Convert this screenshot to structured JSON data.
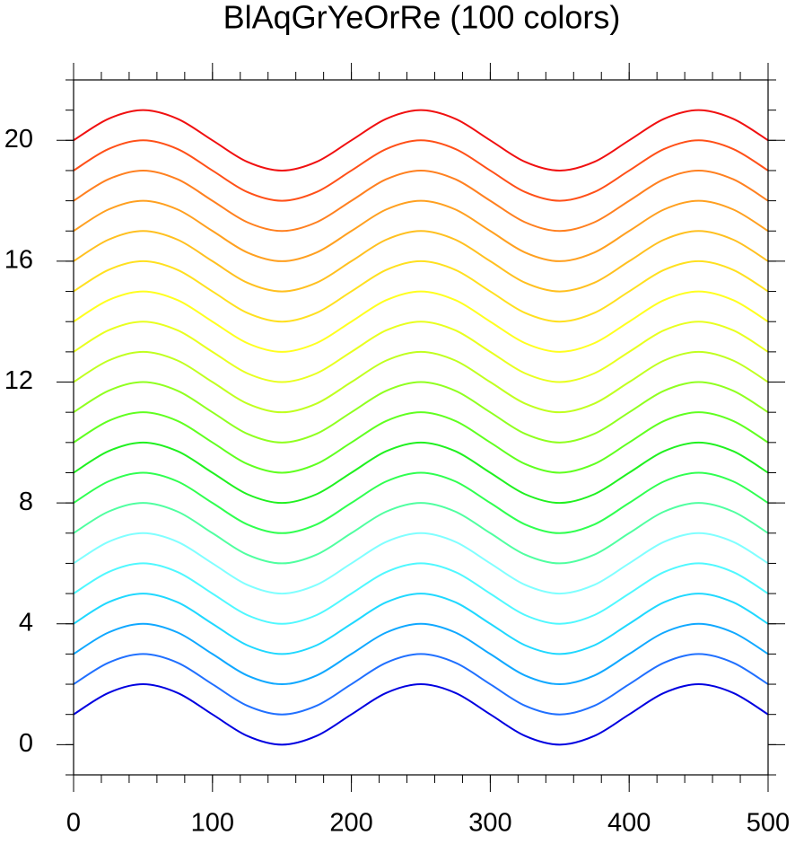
{
  "chart_data": {
    "type": "line",
    "title": "BlAqGrYeOrRe (100 colors)",
    "x": [
      0,
      25,
      50,
      75,
      100,
      125,
      150,
      175,
      200,
      225,
      250,
      275,
      300,
      325,
      350,
      375,
      400,
      425,
      450,
      475,
      500
    ],
    "series": [
      {
        "color": "#0000e0",
        "values": [
          1,
          1.71,
          2,
          1.71,
          1,
          0.29,
          0,
          0.29,
          1,
          1.71,
          2,
          1.71,
          1,
          0.29,
          0,
          0.29,
          1,
          1.71,
          2,
          1.71,
          1
        ]
      },
      {
        "color": "#2070ff",
        "values": [
          2,
          2.71,
          3,
          2.71,
          2,
          1.29,
          1,
          1.29,
          2,
          2.71,
          3,
          2.71,
          2,
          1.29,
          1,
          1.29,
          2,
          2.71,
          3,
          2.71,
          2
        ]
      },
      {
        "color": "#10a8ff",
        "values": [
          3,
          3.71,
          4,
          3.71,
          3,
          2.29,
          2,
          2.29,
          3,
          3.71,
          4,
          3.71,
          3,
          2.29,
          2,
          2.29,
          3,
          3.71,
          4,
          3.71,
          3
        ]
      },
      {
        "color": "#20d8ff",
        "values": [
          4,
          4.71,
          5,
          4.71,
          4,
          3.29,
          3,
          3.29,
          4,
          4.71,
          5,
          4.71,
          4,
          3.29,
          3,
          3.29,
          4,
          4.71,
          5,
          4.71,
          4
        ]
      },
      {
        "color": "#50f8ff",
        "values": [
          5,
          5.71,
          6,
          5.71,
          5,
          4.29,
          4,
          4.29,
          5,
          5.71,
          6,
          5.71,
          5,
          4.29,
          4,
          4.29,
          5,
          5.71,
          6,
          5.71,
          5
        ]
      },
      {
        "color": "#80ffff",
        "values": [
          6,
          6.71,
          7,
          6.71,
          6,
          5.29,
          5,
          5.29,
          6,
          6.71,
          7,
          6.71,
          6,
          5.29,
          5,
          5.29,
          6,
          6.71,
          7,
          6.71,
          6
        ]
      },
      {
        "color": "#50ffa0",
        "values": [
          7,
          7.71,
          8,
          7.71,
          7,
          6.29,
          6,
          6.29,
          7,
          7.71,
          8,
          7.71,
          7,
          6.29,
          6,
          6.29,
          7,
          7.71,
          8,
          7.71,
          7
        ]
      },
      {
        "color": "#30ff50",
        "values": [
          8,
          8.71,
          9,
          8.71,
          8,
          7.29,
          7,
          7.29,
          8,
          8.71,
          9,
          8.71,
          8,
          7.29,
          7,
          7.29,
          8,
          8.71,
          9,
          8.71,
          8
        ]
      },
      {
        "color": "#20f020",
        "values": [
          9,
          9.71,
          10,
          9.71,
          9,
          8.29,
          8,
          8.29,
          9,
          9.71,
          10,
          9.71,
          9,
          8.29,
          8,
          8.29,
          9,
          9.71,
          10,
          9.71,
          9
        ]
      },
      {
        "color": "#60ff20",
        "values": [
          10,
          10.71,
          11,
          10.71,
          10,
          9.29,
          9,
          9.29,
          10,
          10.71,
          11,
          10.71,
          10,
          9.29,
          9,
          9.29,
          10,
          10.71,
          11,
          10.71,
          10
        ]
      },
      {
        "color": "#90ff20",
        "values": [
          11,
          11.71,
          12,
          11.71,
          11,
          10.29,
          10,
          10.29,
          11,
          11.71,
          12,
          11.71,
          11,
          10.29,
          10,
          10.29,
          11,
          11.71,
          12,
          11.71,
          11
        ]
      },
      {
        "color": "#c0ff20",
        "values": [
          12,
          12.71,
          13,
          12.71,
          12,
          11.29,
          11,
          11.29,
          12,
          12.71,
          13,
          12.71,
          12,
          11.29,
          11,
          11.29,
          12,
          12.71,
          13,
          12.71,
          12
        ]
      },
      {
        "color": "#e8ff20",
        "values": [
          13,
          13.71,
          14,
          13.71,
          13,
          12.29,
          12,
          12.29,
          13,
          13.71,
          14,
          13.71,
          13,
          12.29,
          12,
          12.29,
          13,
          13.71,
          14,
          13.71,
          13
        ]
      },
      {
        "color": "#ffff20",
        "values": [
          14,
          14.71,
          15,
          14.71,
          14,
          13.29,
          13,
          13.29,
          14,
          14.71,
          15,
          14.71,
          14,
          13.29,
          13,
          13.29,
          14,
          14.71,
          15,
          14.71,
          14
        ]
      },
      {
        "color": "#ffe020",
        "values": [
          15,
          15.71,
          16,
          15.71,
          15,
          14.29,
          14,
          14.29,
          15,
          15.71,
          16,
          15.71,
          15,
          14.29,
          14,
          14.29,
          15,
          15.71,
          16,
          15.71,
          15
        ]
      },
      {
        "color": "#ffc020",
        "values": [
          16,
          16.71,
          17,
          16.71,
          16,
          15.29,
          15,
          15.29,
          16,
          16.71,
          17,
          16.71,
          16,
          15.29,
          15,
          15.29,
          16,
          16.71,
          17,
          16.71,
          16
        ]
      },
      {
        "color": "#ffa020",
        "values": [
          17,
          17.71,
          18,
          17.71,
          17,
          16.29,
          16,
          16.29,
          17,
          17.71,
          18,
          17.71,
          17,
          16.29,
          16,
          16.29,
          17,
          17.71,
          18,
          17.71,
          17
        ]
      },
      {
        "color": "#ff8020",
        "values": [
          18,
          18.71,
          19,
          18.71,
          18,
          17.29,
          17,
          17.29,
          18,
          18.71,
          19,
          18.71,
          18,
          17.29,
          17,
          17.29,
          18,
          18.71,
          19,
          18.71,
          18
        ]
      },
      {
        "color": "#ff5018",
        "values": [
          19,
          19.71,
          20,
          19.71,
          19,
          18.29,
          18,
          18.29,
          19,
          19.71,
          20,
          19.71,
          19,
          18.29,
          18,
          18.29,
          19,
          19.71,
          20,
          19.71,
          19
        ]
      },
      {
        "color": "#f01010",
        "values": [
          20,
          20.71,
          21,
          20.71,
          20,
          19.29,
          19,
          19.29,
          20,
          20.71,
          21,
          20.71,
          20,
          19.29,
          19,
          19.29,
          20,
          20.71,
          21,
          20.71,
          20
        ]
      }
    ],
    "xlim": [
      0,
      500
    ],
    "ylim": [
      -1,
      22
    ],
    "xticks": [
      0,
      100,
      200,
      300,
      400,
      500
    ],
    "yticks": [
      0,
      4,
      8,
      12,
      16,
      20
    ],
    "xminorticks": [
      0,
      20,
      40,
      60,
      80,
      100,
      120,
      140,
      160,
      180,
      200,
      220,
      240,
      260,
      280,
      300,
      320,
      340,
      360,
      380,
      400,
      420,
      440,
      460,
      480,
      500
    ],
    "yminorticks": [
      -1,
      0,
      1,
      2,
      3,
      4,
      5,
      6,
      7,
      8,
      9,
      10,
      11,
      12,
      13,
      14,
      15,
      16,
      17,
      18,
      19,
      20,
      21,
      22
    ]
  }
}
